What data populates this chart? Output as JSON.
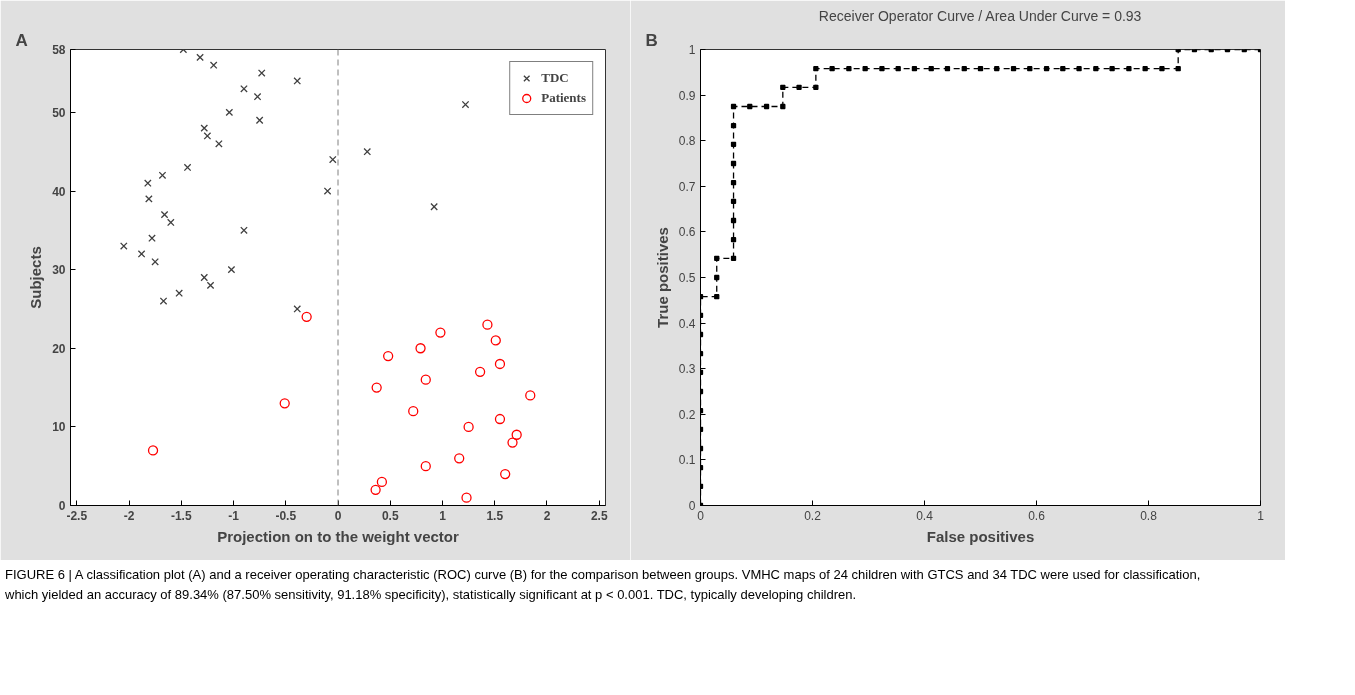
{
  "chart_data": [
    {
      "type": "scatter",
      "xlabel": "Projection on to the weight vector",
      "ylabel": "Subjects",
      "xlim": [
        -2.56,
        2.56
      ],
      "ylim": [
        0,
        58
      ],
      "xticks": [
        -2.5,
        -2,
        -1.5,
        -1,
        -0.5,
        0,
        0.5,
        1,
        1.5,
        2,
        2.5
      ],
      "yticks": [
        0,
        10,
        20,
        30,
        40,
        50,
        58
      ],
      "grid": false,
      "legend": "top right",
      "series": [
        {
          "name": "TDC",
          "color": "#404040",
          "marker": "cross",
          "x": [
            -1.48,
            -1.32,
            -1.19,
            -0.73,
            -0.39,
            -0.9,
            -0.77,
            1.22,
            -1.04,
            -0.75,
            -1.28,
            -1.25,
            -1.14,
            0.28,
            -0.05,
            -1.44,
            -1.68,
            -1.82,
            -0.1,
            -1.81,
            0.92,
            -1.66,
            -1.6,
            -0.9,
            -1.78,
            -2.05,
            -1.88,
            -1.75,
            -1.02,
            -1.28,
            -1.22,
            -1.52,
            -1.67,
            -0.39
          ],
          "values": [
            58,
            57,
            56,
            55,
            54,
            53,
            52,
            51,
            50,
            49,
            48,
            47,
            46,
            45,
            44,
            43,
            42,
            41,
            40,
            39,
            38,
            37,
            36,
            35,
            34,
            33,
            32,
            31,
            30,
            29,
            28,
            27,
            26,
            25
          ]
        },
        {
          "name": "Patients",
          "color": "#ff0000",
          "marker": "circle",
          "x": [
            -0.3,
            1.43,
            0.98,
            1.51,
            0.79,
            0.48,
            1.55,
            1.36,
            0.84,
            0.37,
            1.84,
            -0.51,
            0.72,
            1.55,
            1.25,
            1.71,
            1.67,
            -1.77,
            1.16,
            0.84,
            1.6,
            0.42,
            0.36,
            1.23
          ],
          "values": [
            24,
            23,
            22,
            21,
            20,
            19,
            18,
            17,
            16,
            15,
            14,
            13,
            12,
            11,
            10,
            9,
            8,
            7,
            6,
            5,
            4,
            3,
            2,
            1
          ]
        }
      ],
      "ref_lines": [
        {
          "axis": "x",
          "value": 0,
          "color": "#808080",
          "line_style": "dashed"
        }
      ],
      "annotations": [
        "A",
        "FIGURE 6 | A classification plot (A) and a receiver operating characteristic (ROC) curve (B) for the comparison between groups. VMHC maps of 24 children with GTCS and 34 TDC were used for classification, which yielded an accuracy of 89.34% (87.50% sensitivity, 91.18% specificity), statistically significant at p < 0.001. TDC, typically developing children."
      ]
    },
    {
      "type": "line",
      "title": "Receiver Operator Curve / Area Under Curve = 0.93",
      "xlabel": "False positives",
      "ylabel": "True positives",
      "xlim": [
        0,
        1
      ],
      "ylim": [
        0,
        1
      ],
      "xticks": [
        0,
        0.2,
        0.4,
        0.6,
        0.8,
        1
      ],
      "yticks": [
        0,
        0.1,
        0.2,
        0.3,
        0.4,
        0.5,
        0.6,
        0.7,
        0.8,
        0.9,
        1
      ],
      "grid": false,
      "marker": "square",
      "line_style": "dashed",
      "series": [
        {
          "color": "#000000",
          "x": [
            0,
            0,
            0,
            0,
            0,
            0,
            0,
            0,
            0,
            0,
            0,
            0,
            0.029,
            0.029,
            0.029,
            0.059,
            0.059,
            0.059,
            0.059,
            0.059,
            0.059,
            0.059,
            0.059,
            0.059,
            0.088,
            0.118,
            0.147,
            0.147,
            0.176,
            0.206,
            0.206,
            0.235,
            0.265,
            0.294,
            0.324,
            0.353,
            0.382,
            0.412,
            0.441,
            0.471,
            0.5,
            0.529,
            0.559,
            0.588,
            0.618,
            0.647,
            0.676,
            0.706,
            0.735,
            0.765,
            0.794,
            0.824,
            0.853,
            0.853,
            0.882,
            0.912,
            0.941,
            0.971,
            1
          ],
          "values": [
            0,
            0.042,
            0.083,
            0.125,
            0.167,
            0.208,
            0.25,
            0.292,
            0.333,
            0.375,
            0.417,
            0.458,
            0.458,
            0.5,
            0.542,
            0.542,
            0.583,
            0.625,
            0.667,
            0.708,
            0.75,
            0.792,
            0.833,
            0.875,
            0.875,
            0.875,
            0.875,
            0.917,
            0.917,
            0.917,
            0.958,
            0.958,
            0.958,
            0.958,
            0.958,
            0.958,
            0.958,
            0.958,
            0.958,
            0.958,
            0.958,
            0.958,
            0.958,
            0.958,
            0.958,
            0.958,
            0.958,
            0.958,
            0.958,
            0.958,
            0.958,
            0.958,
            0.958,
            1,
            1,
            1,
            1,
            1,
            1
          ]
        }
      ],
      "annotations": [
        "B"
      ]
    }
  ]
}
